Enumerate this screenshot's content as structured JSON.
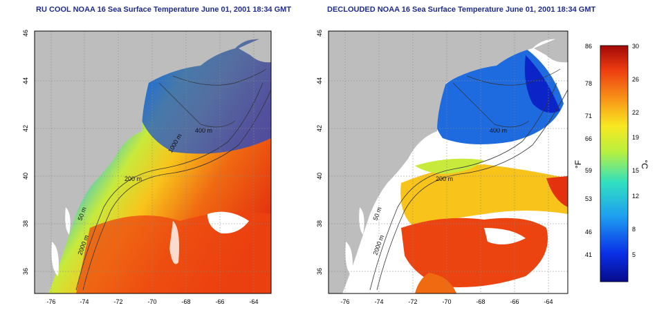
{
  "panels": [
    {
      "title": "RU COOL NOAA 16 Sea Surface Temperature June 01, 2001 18:34 GMT"
    },
    {
      "title": "DECLOUDED NOAA 16 Sea Surface Temperature June 01, 2001 18:34 GMT"
    }
  ],
  "axes": {
    "lon_ticks": [
      "-76",
      "-74",
      "-72",
      "-70",
      "-68",
      "-66",
      "-64"
    ],
    "lat_ticks": [
      "36",
      "38",
      "40",
      "42",
      "44",
      "46"
    ]
  },
  "contours": {
    "label_50": "50 m",
    "label_200": "200 m",
    "label_400": "400 m",
    "label_1000": "1000 m",
    "label_2000": "2000 m"
  },
  "colorbar": {
    "f_label": "°F",
    "c_label": "°C",
    "f_ticks": [
      "86",
      "78",
      "71",
      "66",
      "59",
      "53",
      "46",
      "41"
    ],
    "c_ticks": [
      "30",
      "26",
      "22",
      "19",
      "15",
      "12",
      "8",
      "5"
    ]
  },
  "colors": {
    "land": "#bdbdbd",
    "cloud": "#ffffff",
    "title": "#1e2c8c"
  }
}
